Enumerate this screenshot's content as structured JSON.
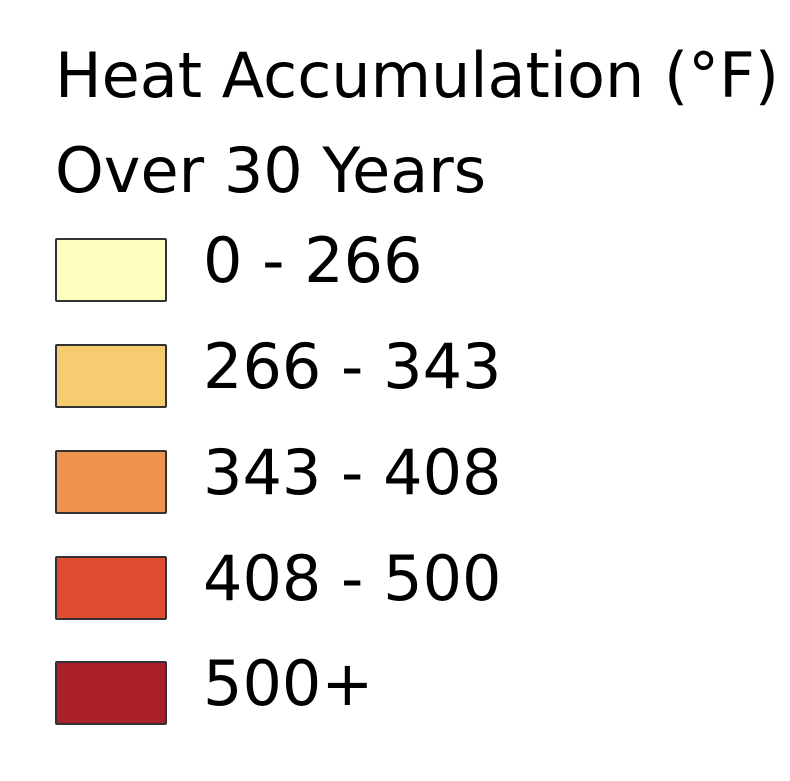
{
  "legend": {
    "title_line_1": "Heat Accumulation (°F)",
    "title_line_2": "Over 30 Years",
    "items": [
      {
        "label": "0 - 266",
        "color": "#ffffc2"
      },
      {
        "label": "266 - 343",
        "color": "#f5cc70"
      },
      {
        "label": "343 - 408",
        "color": "#ee944f"
      },
      {
        "label": "408 - 500",
        "color": "#e04b33"
      },
      {
        "label": "500+",
        "color": "#a91f2a"
      }
    ]
  }
}
